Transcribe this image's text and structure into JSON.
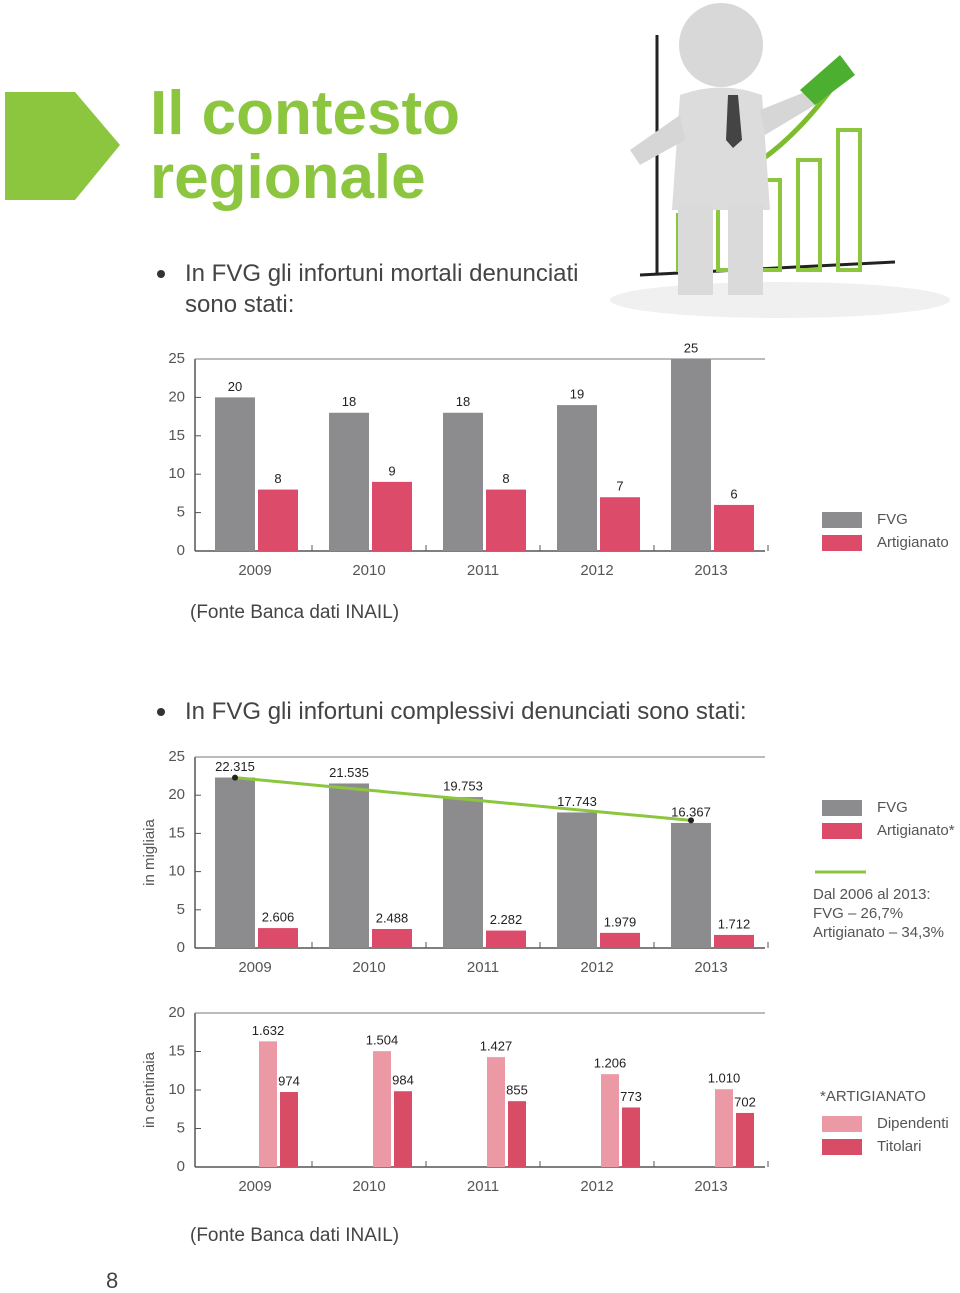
{
  "title": "Il contesto regionale",
  "bullets": [
    "In FVG gli infortuni mortali denunciati sono stati:",
    "In FVG gli infortuni complessivi denunciati sono stati:"
  ],
  "sources": [
    "(Fonte Banca dati INAIL)",
    "(Fonte Banca dati INAIL)"
  ],
  "page_number": "8",
  "chart_data": [
    {
      "type": "bar",
      "categories": [
        "2009",
        "2010",
        "2011",
        "2012",
        "2013"
      ],
      "series": [
        {
          "name": "FVG",
          "color": "#8c8c8e",
          "values": [
            20,
            18,
            18,
            19,
            25
          ]
        },
        {
          "name": "Artigianato",
          "color": "#dc4b69",
          "values": [
            8,
            9,
            8,
            7,
            6
          ]
        }
      ],
      "ylim": [
        0,
        25
      ],
      "yticks": [
        0,
        5,
        10,
        15,
        20,
        25
      ]
    },
    {
      "type": "bar",
      "ylabel": "in migliaia",
      "categories": [
        "2009",
        "2010",
        "2011",
        "2012",
        "2013"
      ],
      "series": [
        {
          "name": "FVG",
          "color": "#8c8c8e",
          "values": [
            22.315,
            21.535,
            19.753,
            17.743,
            16.367
          ]
        },
        {
          "name": "Artigianato*",
          "color": "#dc4b69",
          "values": [
            2.606,
            2.488,
            2.282,
            1.979,
            1.712
          ]
        }
      ],
      "trend": {
        "color": "#8cc63f",
        "values": [
          22.3,
          20.9,
          19.5,
          18.1,
          16.7
        ]
      },
      "note": [
        "Dal 2006 al 2013:",
        "FVG – 26,7%",
        "Artigianato – 34,3%"
      ],
      "ylim": [
        0,
        25
      ],
      "yticks": [
        0,
        5,
        10,
        15,
        20,
        25
      ]
    },
    {
      "type": "bar",
      "ylabel": "in centinaia",
      "legend_title": "*ARTIGIANATO",
      "categories": [
        "2009",
        "2010",
        "2011",
        "2012",
        "2013"
      ],
      "series": [
        {
          "name": "Dipendenti",
          "color": "#eb9aa5",
          "values": [
            16.32,
            15.04,
            14.27,
            12.06,
            10.1
          ],
          "value_labels": [
            "1.632",
            "1.504",
            "1.427",
            "1.206",
            "1.010"
          ]
        },
        {
          "name": "Titolari",
          "color": "#d94c66",
          "values": [
            9.74,
            9.84,
            8.55,
            7.73,
            7.02
          ],
          "value_labels": [
            "974",
            "984",
            "855",
            "773",
            "702"
          ]
        }
      ],
      "ylim": [
        0,
        20
      ],
      "yticks": [
        0,
        5,
        10,
        15,
        20
      ]
    }
  ]
}
